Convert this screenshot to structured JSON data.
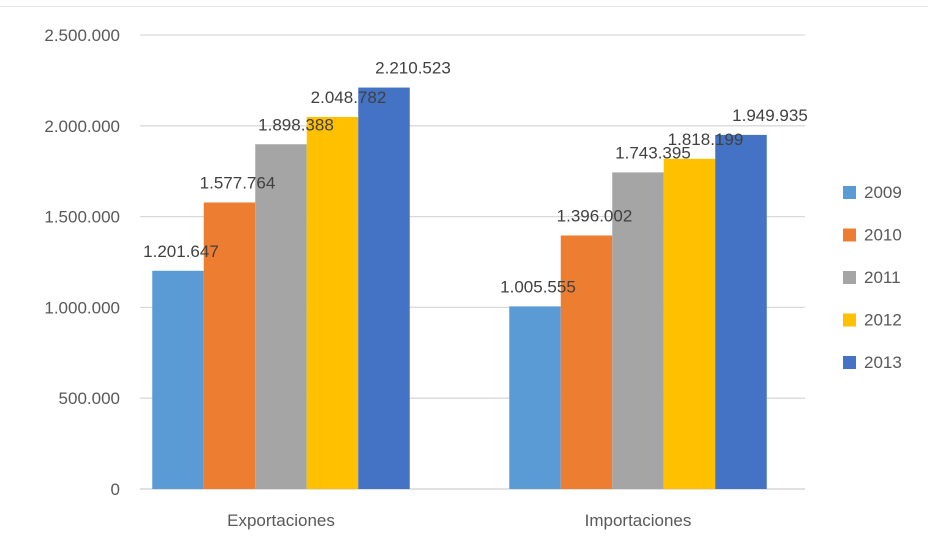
{
  "chart_data": {
    "type": "bar",
    "categories": [
      "Exportaciones",
      "Importaciones"
    ],
    "series": [
      {
        "name": "2009",
        "color": "#5b9bd5",
        "values": [
          1201647,
          1005555
        ],
        "labels": [
          "1.201.647",
          "1.005.555"
        ]
      },
      {
        "name": "2010",
        "color": "#ed7d31",
        "values": [
          1577764,
          1396002
        ],
        "labels": [
          "1.577.764",
          "1.396.002"
        ]
      },
      {
        "name": "2011",
        "color": "#a5a5a5",
        "values": [
          1898388,
          1743395
        ],
        "labels": [
          "1.898.388",
          "1.743.395"
        ]
      },
      {
        "name": "2012",
        "color": "#ffc000",
        "values": [
          2048782,
          1818199
        ],
        "labels": [
          "2.048.782",
          "1.818.199"
        ]
      },
      {
        "name": "2013",
        "color": "#4472c4",
        "values": [
          2210523,
          1949935
        ],
        "labels": [
          "2.210.523",
          "1.949.935"
        ]
      }
    ],
    "yticks": [
      0,
      500000,
      1000000,
      1500000,
      2000000,
      2500000
    ],
    "ytick_labels": [
      "0",
      "500.000",
      "1.000.000",
      "1.500.000",
      "2.000.000",
      "2.500.000"
    ],
    "ylim": [
      0,
      2500000
    ],
    "grid": true,
    "legend": "right",
    "title": "",
    "xlabel": "",
    "ylabel": ""
  }
}
